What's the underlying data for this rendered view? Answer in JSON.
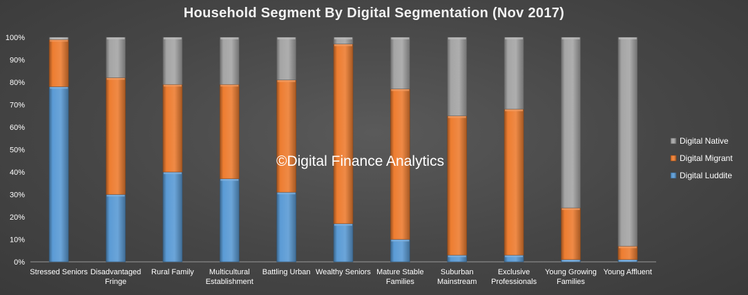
{
  "chart_data": {
    "type": "bar",
    "stacked": true,
    "percent": true,
    "title": "Household Segment By Digital Segmentation (Nov 2017)",
    "watermark": "©Digital Finance Analytics",
    "categories": [
      [
        "Stressed Seniors"
      ],
      [
        "Disadvantaged",
        "Fringe"
      ],
      [
        "Rural Family"
      ],
      [
        "Multicultural",
        "Establishment"
      ],
      [
        "Battling Urban"
      ],
      [
        "Wealthy Seniors"
      ],
      [
        "Mature Stable",
        "Families"
      ],
      [
        "Suburban",
        "Mainstream"
      ],
      [
        "Exclusive",
        "Professionals"
      ],
      [
        "Young Growing",
        "Families"
      ],
      [
        "Young Affluent"
      ]
    ],
    "series": [
      {
        "name": "Digital Luddite",
        "color": "#5b9bd5",
        "values": [
          78,
          30,
          40,
          37,
          31,
          17,
          10,
          3,
          3,
          1,
          1
        ]
      },
      {
        "name": "Digital Migrant",
        "color": "#ed7d31",
        "values": [
          21,
          52,
          39,
          42,
          50,
          80,
          67,
          62,
          65,
          23,
          6
        ]
      },
      {
        "name": "Digital Native",
        "color": "#a5a5a5",
        "values": [
          1,
          18,
          21,
          21,
          19,
          3,
          23,
          35,
          32,
          76,
          93
        ]
      }
    ],
    "ylim": [
      0,
      100
    ],
    "yticks": [
      "0%",
      "10%",
      "20%",
      "30%",
      "40%",
      "50%",
      "60%",
      "70%",
      "80%",
      "90%",
      "100%"
    ],
    "legend_position": "right"
  }
}
